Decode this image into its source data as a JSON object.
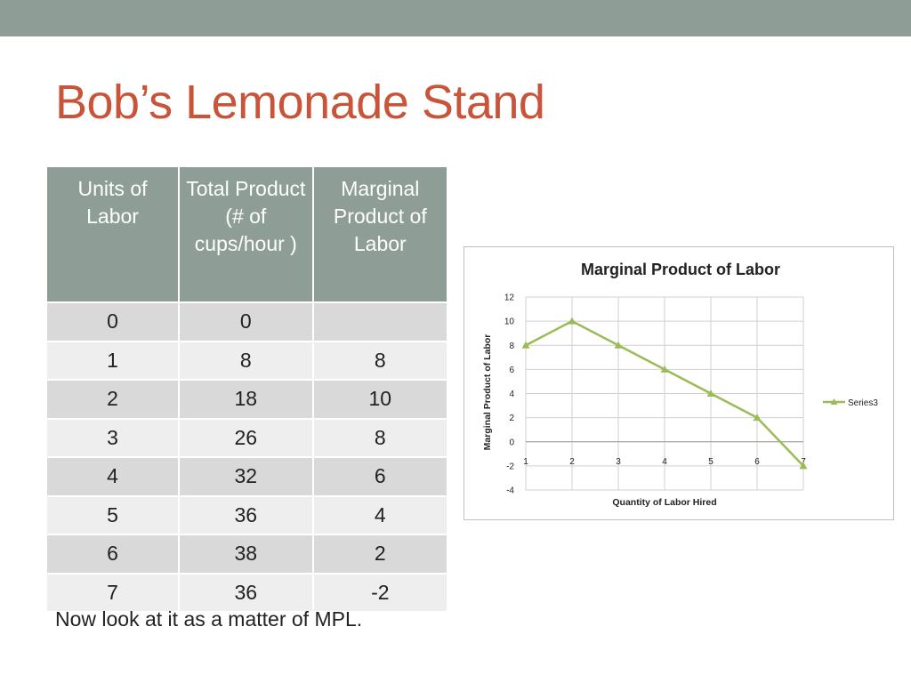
{
  "slide": {
    "title": "Bob’s Lemonade Stand",
    "caption": "Now look at it as a matter of MPL."
  },
  "table": {
    "headers": [
      "Units of Labor",
      "Total Product (# of cups/hour )",
      "Marginal Product of Labor"
    ],
    "rows": [
      [
        "0",
        "0",
        ""
      ],
      [
        "1",
        "8",
        "8"
      ],
      [
        "2",
        "18",
        "10"
      ],
      [
        "3",
        "26",
        "8"
      ],
      [
        "4",
        "32",
        "6"
      ],
      [
        "5",
        "36",
        "4"
      ],
      [
        "6",
        "38",
        "2"
      ],
      [
        "7",
        "36",
        "-2"
      ]
    ]
  },
  "colors": {
    "title": "#c8553a",
    "header_bg": "#8e9e97",
    "series_line": "#9bbb59"
  },
  "chart_data": {
    "type": "line",
    "title": "Marginal Product of Labor",
    "xlabel": "Quantity of Labor Hired",
    "ylabel": "Marginal Product of Labor",
    "x": [
      1,
      2,
      3,
      4,
      5,
      6,
      7
    ],
    "series": [
      {
        "name": "Series3",
        "values": [
          8,
          10,
          8,
          6,
          4,
          2,
          -2
        ]
      }
    ],
    "ylim": [
      -4,
      12
    ],
    "yticks": [
      12,
      10,
      8,
      6,
      4,
      2,
      0,
      -2,
      -4
    ],
    "xticks": [
      "1",
      "2",
      "3",
      "4",
      "5",
      "6",
      "7"
    ],
    "grid": true,
    "marker": "triangle",
    "legend": "right"
  }
}
